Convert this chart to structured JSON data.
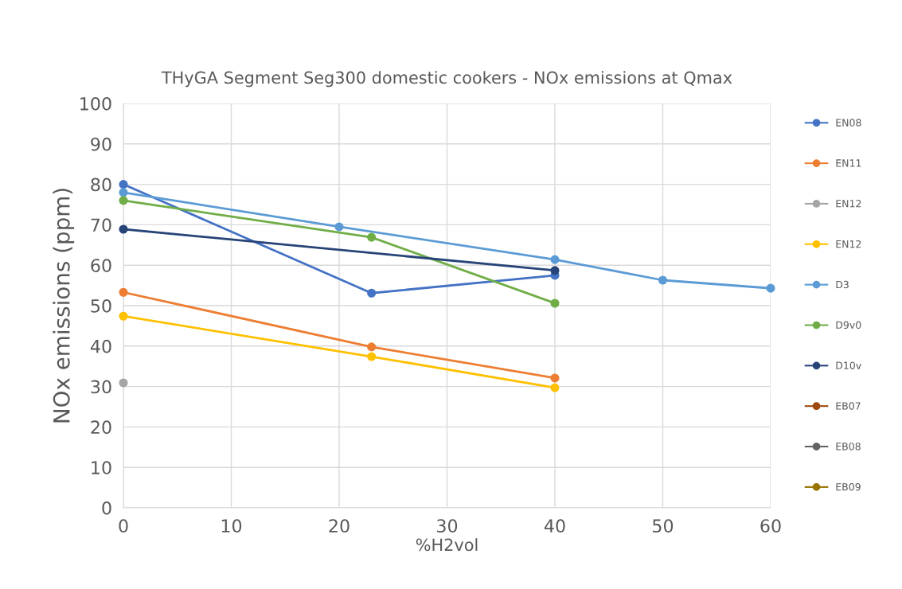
{
  "chart_data": {
    "type": "line",
    "title": "THyGA Segment Seg300 domestic cookers - NOx emissions at Qmax",
    "xlabel": "%H2vol",
    "ylabel": "NOx emissions (ppm)",
    "xlim": [
      0,
      60
    ],
    "xticks": [
      0,
      10,
      20,
      30,
      40,
      50,
      60
    ],
    "ylim": [
      0,
      100
    ],
    "yticks": [
      0,
      10,
      20,
      30,
      40,
      50,
      60,
      70,
      80,
      90,
      100
    ],
    "grid": true,
    "legend": "right",
    "marker": "circle",
    "line_style": "solid",
    "series": [
      {
        "name": "EN08",
        "color": "#4472c4",
        "x": [
          0,
          23,
          40
        ],
        "values": [
          80,
          53.1,
          57.5
        ]
      },
      {
        "name": "EN11",
        "color": "#ed7d31",
        "x": [
          0,
          23,
          40
        ],
        "values": [
          53.3,
          39.8,
          32.1
        ]
      },
      {
        "name": "EN12",
        "color": "#a5a5a5",
        "x": [
          0
        ],
        "values": [
          30.9
        ]
      },
      {
        "name": "EN12",
        "color": "#ffc000",
        "x": [
          0,
          23,
          40
        ],
        "values": [
          47.4,
          37.4,
          29.7
        ]
      },
      {
        "name": "D3",
        "color": "#5b9bd5",
        "x": [
          0,
          20,
          40,
          50,
          60
        ],
        "values": [
          78,
          69.5,
          61.4,
          56.3,
          54.3
        ]
      },
      {
        "name": "D9v0",
        "color": "#70ad47",
        "x": [
          0,
          23,
          40
        ],
        "values": [
          76,
          66.9,
          50.6
        ]
      },
      {
        "name": "D10v",
        "color": "#264478",
        "x": [
          0,
          40
        ],
        "values": [
          68.9,
          58.7
        ]
      },
      {
        "name": "EB07",
        "color": "#9e480e"
      },
      {
        "name": "EB08",
        "color": "#636363"
      },
      {
        "name": "EB09",
        "color": "#997300"
      }
    ]
  }
}
